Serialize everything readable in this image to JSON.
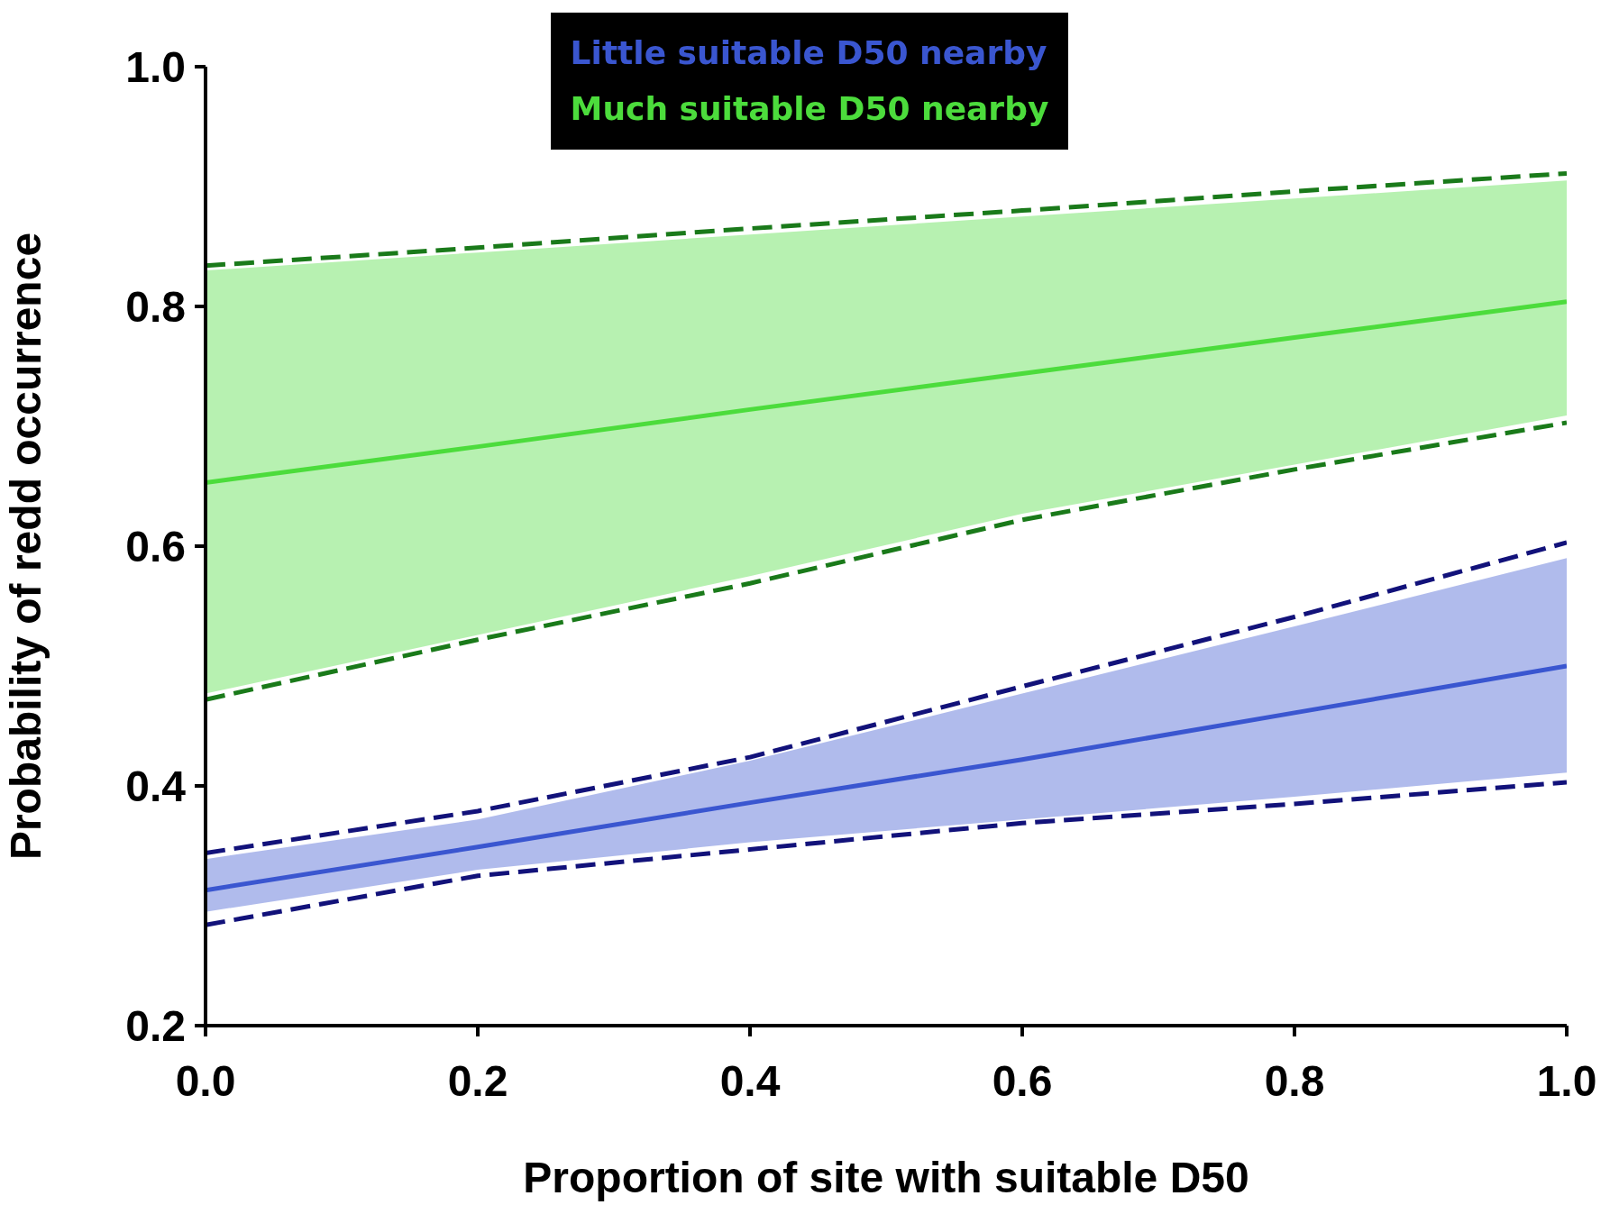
{
  "chart_data": {
    "type": "line",
    "xlabel": "Proportion of site with suitable D50",
    "ylabel": "Probability of redd occurrence",
    "x": [
      0,
      0.2,
      0.4,
      0.6,
      0.8,
      1
    ],
    "xlim": [
      0,
      1
    ],
    "xticks": [
      {
        "value": 0,
        "label": "0.0"
      },
      0.2,
      0.4,
      0.6,
      0.8,
      {
        "value": 1,
        "label": "1.0"
      }
    ],
    "ylim": [
      0.2,
      1
    ],
    "yticks": [
      0.2,
      0.4,
      0.6,
      0.8,
      {
        "value": 1,
        "label": "1.0"
      }
    ],
    "grid": false,
    "legend": "top",
    "marker": "none",
    "line_style": "solid",
    "series": [
      {
        "name": "Little suitable D50 nearby",
        "color": "#3a56d0",
        "values": [
          0.313,
          0.349,
          0.386,
          0.422,
          0.461,
          0.5
        ],
        "lower": [
          0.295,
          0.33,
          0.353,
          0.372,
          0.391,
          0.411
        ],
        "upper": [
          0.339,
          0.372,
          0.421,
          0.477,
          0.533,
          0.59
        ]
      },
      {
        "name": "Much suitable D50 nearby",
        "color": "#4cdc3c",
        "values": [
          0.653,
          0.683,
          0.714,
          0.744,
          0.774,
          0.804
        ],
        "lower": [
          0.477,
          0.526,
          0.575,
          0.627,
          0.668,
          0.709
        ],
        "upper": [
          0.83,
          0.845,
          0.86,
          0.875,
          0.89,
          0.905
        ]
      },
      {
        "color": "#12127a",
        "line_style": "dashed",
        "values": [
          0.344,
          0.379,
          0.424,
          0.483,
          0.541,
          0.603
        ]
      },
      {
        "color": "#12127a",
        "line_style": "dashed",
        "values": [
          0.284,
          0.325,
          0.347,
          0.369,
          0.385,
          0.403
        ]
      },
      {
        "color": "#1a7a1a",
        "line_style": "dashed",
        "values": [
          0.834,
          0.849,
          0.865,
          0.88,
          0.896,
          0.911
        ]
      },
      {
        "color": "#1a7a1a",
        "line_style": "dashed",
        "values": [
          0.472,
          0.522,
          0.569,
          0.622,
          0.664,
          0.703
        ]
      }
    ]
  }
}
